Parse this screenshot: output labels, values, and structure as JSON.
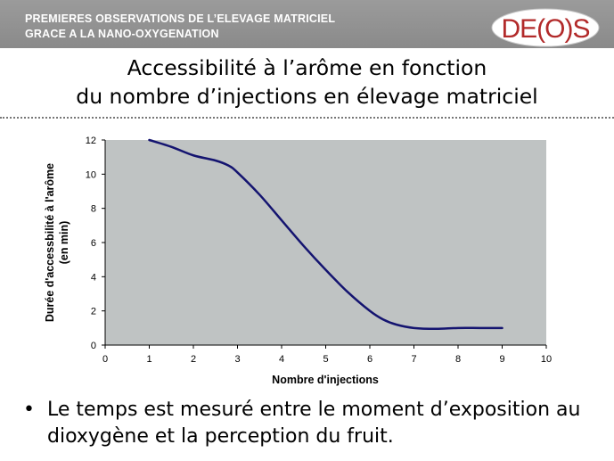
{
  "header": {
    "line1": "PREMIERES OBSERVATIONS DE L’ELEVAGE MATRICIEL",
    "line2": "GRACE A LA NANO-OXYGENATION",
    "logo_text": "DE(O)S",
    "logo_color": "#b22a2a"
  },
  "slide": {
    "title_line1": "Accessibilité à l’arôme en fonction",
    "title_line2": "du nombre d’injections en élevage matriciel"
  },
  "bullet": {
    "text": "Le temps est mesuré entre le moment d’exposition au dioxygène et la perception du fruit."
  },
  "chart_data": {
    "type": "line",
    "title": "",
    "xlabel": "Nombre d'injections",
    "ylabel_line1": "Durée d'accessbilité à l'arôme",
    "ylabel_line2": "(en min)",
    "xlim": [
      0,
      10
    ],
    "ylim": [
      0,
      12
    ],
    "x_ticks": [
      0,
      1,
      2,
      3,
      4,
      5,
      6,
      7,
      8,
      9,
      10
    ],
    "y_ticks": [
      0,
      2,
      4,
      6,
      8,
      10,
      12
    ],
    "grid": false,
    "legend": "none",
    "plot_background": "#bfc3c3",
    "series": [
      {
        "color": "#141470",
        "x": [
          1,
          1.5,
          2,
          2.5,
          2.8,
          3,
          3.5,
          4,
          4.5,
          5,
          5.5,
          6,
          6.3,
          6.6,
          7,
          7.5,
          8,
          8.5,
          9
        ],
        "y": [
          12,
          11.6,
          11.1,
          10.8,
          10.5,
          10.1,
          8.8,
          7.3,
          5.8,
          4.4,
          3.1,
          2.0,
          1.5,
          1.2,
          1.0,
          0.95,
          1.0,
          1.0,
          1.0
        ]
      }
    ]
  }
}
